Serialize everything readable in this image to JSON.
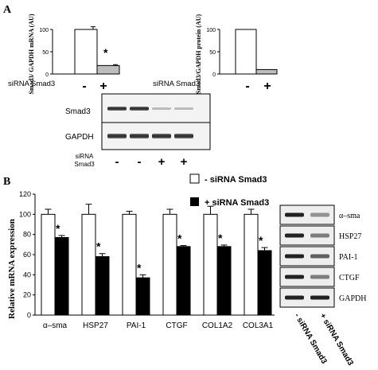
{
  "panels": {
    "a": "A",
    "b": "B"
  },
  "chart_data": [
    {
      "type": "bar",
      "ylabel": "Smad3/ GAPDH mRNA (AU)",
      "ylim": [
        0,
        100
      ],
      "yticks": [
        "0",
        "50",
        "100"
      ],
      "categories": [
        "-",
        "+"
      ],
      "values": [
        100,
        19
      ],
      "errors": [
        6,
        2
      ],
      "annotations": [
        "",
        "*"
      ],
      "xlabel_prefix": "siRNA Smad3",
      "colors": [
        "#ffffff",
        "#bdbdbd"
      ]
    },
    {
      "type": "bar",
      "ylabel": "Smad3/GAPDH protein (AU)",
      "ylim": [
        0,
        100
      ],
      "yticks": [
        "0",
        "50",
        "100"
      ],
      "categories": [
        "-",
        "+"
      ],
      "values": [
        100,
        10
      ],
      "errors": [
        0,
        0
      ],
      "xlabel_prefix": "siRNA Smad3",
      "colors": [
        "#ffffff",
        "#bdbdbd"
      ]
    },
    {
      "type": "bar",
      "ylabel": "Relative mRNA expression",
      "ylim": [
        0,
        120
      ],
      "yticks": [
        "0",
        "20",
        "40",
        "60",
        "80",
        "100",
        "120"
      ],
      "categories": [
        "α–sma",
        "HSP27",
        "PAI-1",
        "CTGF",
        "COL1A2",
        "COL3A1"
      ],
      "series": [
        {
          "name": "- siRNA Smad3",
          "values": [
            100,
            100,
            100,
            100,
            100,
            100
          ],
          "errors": [
            5,
            10,
            3,
            5,
            8,
            5
          ],
          "color": "#ffffff"
        },
        {
          "name": "+ siRNA Smad3",
          "values": [
            77,
            58,
            37,
            68,
            68,
            64
          ],
          "errors": [
            2,
            3,
            3,
            1,
            1.5,
            3
          ],
          "color": "#000000"
        }
      ],
      "annotations": [
        "*",
        "*",
        "*",
        "*",
        "*",
        "*"
      ]
    }
  ],
  "blot_a": {
    "rows": [
      "Smad3",
      "GAPDH"
    ],
    "lane_label": "siRNA\nSmad3",
    "lanes": [
      "-",
      "-",
      "+",
      "+"
    ]
  },
  "blot_b": {
    "rows": [
      "α–sma",
      "HSP27",
      "PAI-1",
      "CTGF",
      "GAPDH"
    ],
    "lanes": [
      "- siRNA Smad3",
      "+ siRNA Smad3"
    ]
  }
}
